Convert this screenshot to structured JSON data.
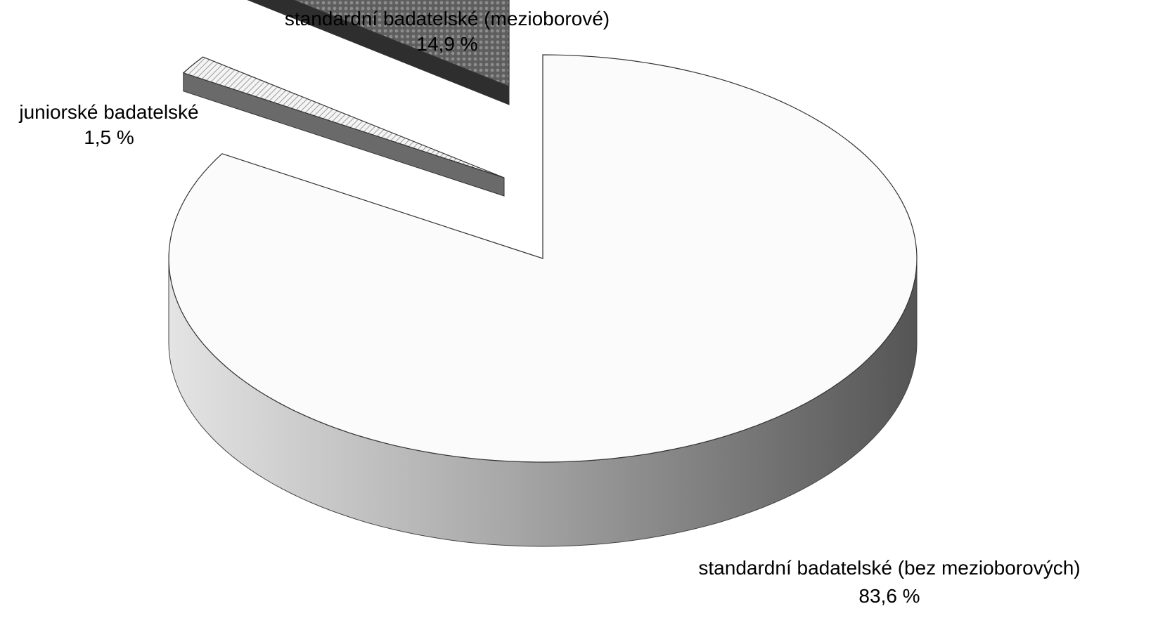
{
  "chart_data": {
    "type": "pie",
    "style": "3d-exploded",
    "title": "",
    "slices": [
      {
        "label": "standardní badatelské (bez mezioborových)",
        "value": 83.6,
        "value_label": "83,6 %",
        "fill": "#fbfbfb"
      },
      {
        "label": "juniorské badatelské",
        "value": 1.5,
        "value_label": "1,5 %",
        "fill": "#e2e2e2"
      },
      {
        "label": "standardní badatelské (mezioborové)",
        "value": 14.9,
        "value_label": "14,9 %",
        "fill": "#6e6e6e"
      }
    ],
    "legend": "none"
  }
}
